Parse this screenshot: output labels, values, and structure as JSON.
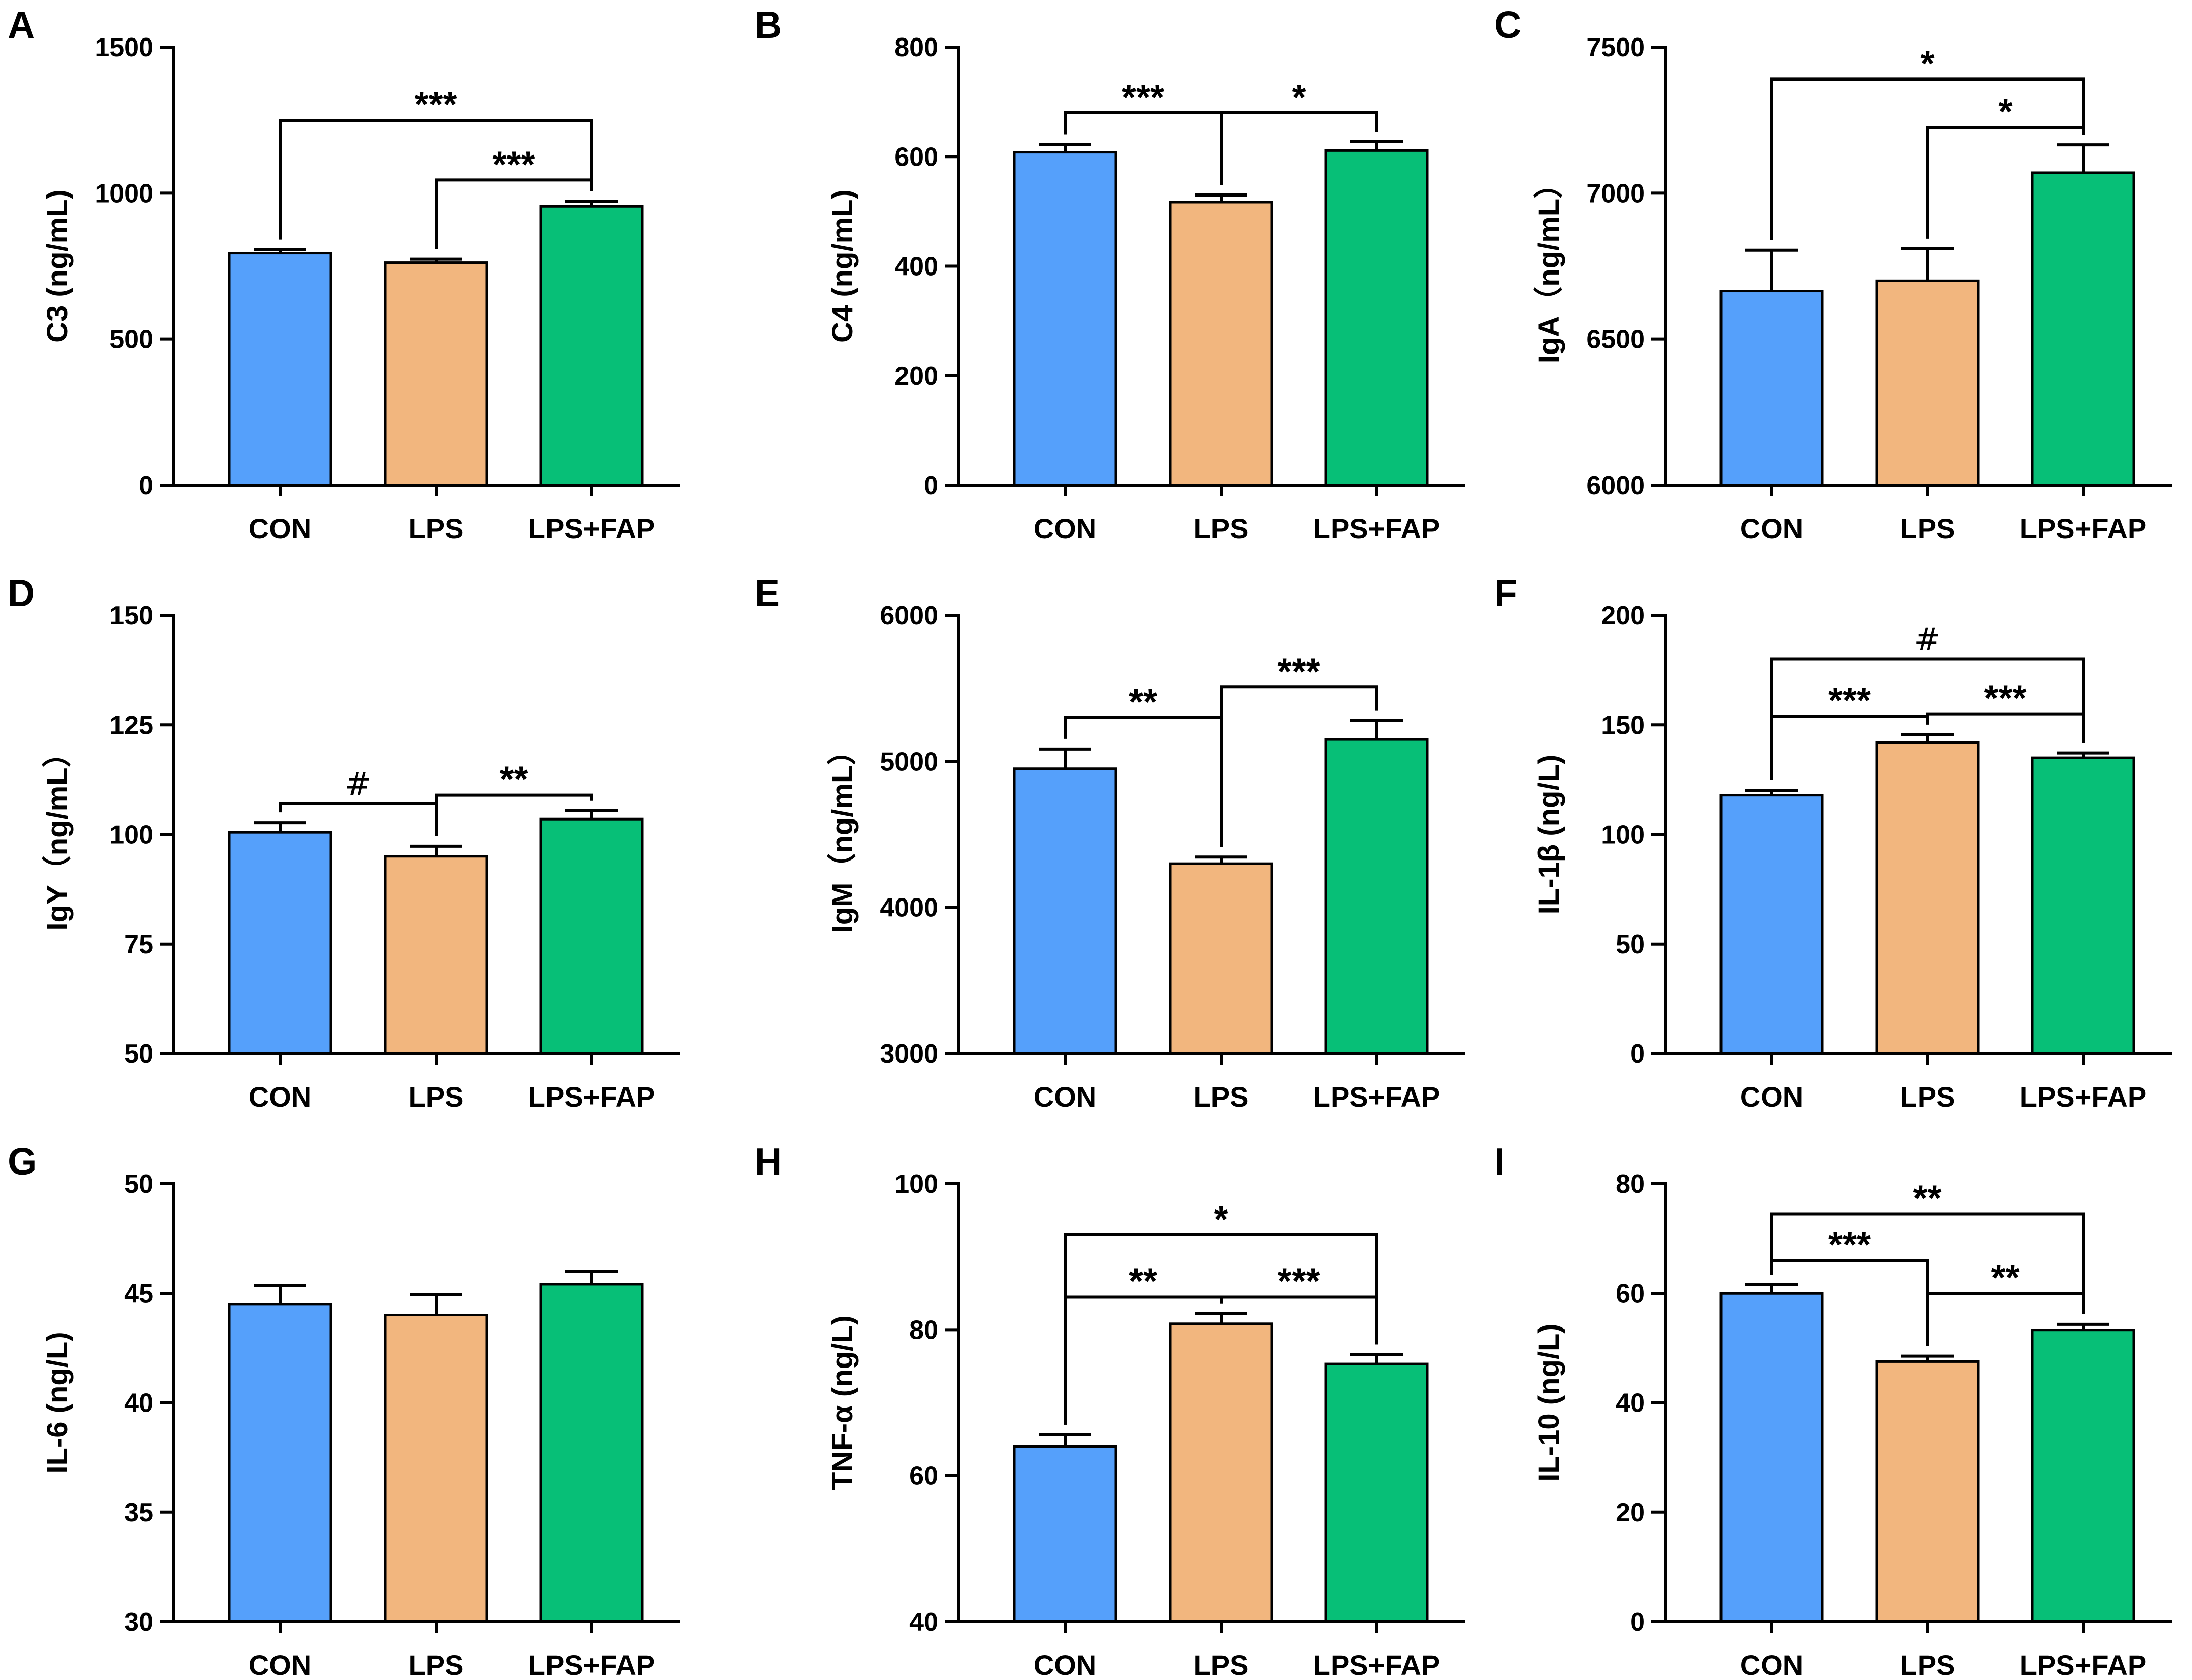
{
  "colors": {
    "CON": "#55A0FB",
    "LPS": "#F2B67E",
    "LPS+FAP": "#07BF77"
  },
  "chart_data": [
    {
      "type": "bar",
      "panel": "A",
      "ylabel": "C3 (ng/mL)",
      "categories": [
        "CON",
        "LPS",
        "LPS+FAP"
      ],
      "values": [
        795,
        762,
        955
      ],
      "errors": [
        12,
        12,
        16
      ],
      "ylim": [
        0,
        1500
      ],
      "yticks": [
        0,
        500,
        1000,
        1500
      ],
      "annotations": [
        {
          "from": 0,
          "to": 2,
          "y": 1250,
          "label": "***"
        },
        {
          "from": 1,
          "to": 2,
          "y": 1045,
          "label": "***"
        }
      ]
    },
    {
      "type": "bar",
      "panel": "B",
      "ylabel": "C4 (ng/mL)",
      "categories": [
        "CON",
        "LPS",
        "LPS+FAP"
      ],
      "values": [
        608,
        517,
        611
      ],
      "errors": [
        14,
        13,
        16
      ],
      "ylim": [
        0,
        800
      ],
      "yticks": [
        0,
        200,
        400,
        600,
        800
      ],
      "annotations": [
        {
          "from": 0,
          "to": 1,
          "y": 680,
          "label": "***"
        },
        {
          "from": 1,
          "to": 2,
          "y": 680,
          "label": "*"
        }
      ]
    },
    {
      "type": "bar",
      "panel": "C",
      "ylabel": "IgA（ng/mL）",
      "categories": [
        "CON",
        "LPS",
        "LPS+FAP"
      ],
      "values": [
        6665,
        6700,
        7070
      ],
      "errors": [
        140,
        110,
        95
      ],
      "ylim": [
        6000,
        7500
      ],
      "yticks": [
        6000,
        6500,
        7000,
        7500
      ],
      "annotations": [
        {
          "from": 0,
          "to": 2,
          "y": 7390,
          "label": "*"
        },
        {
          "from": 1,
          "to": 2,
          "y": 7225,
          "label": "*"
        }
      ]
    },
    {
      "type": "bar",
      "panel": "D",
      "ylabel": "IgY（ng/mL）",
      "categories": [
        "CON",
        "LPS",
        "LPS+FAP"
      ],
      "values": [
        100.5,
        95,
        103.5
      ],
      "errors": [
        2.2,
        2.3,
        1.9
      ],
      "ylim": [
        50,
        150
      ],
      "yticks": [
        50,
        75,
        100,
        125,
        150
      ],
      "annotations": [
        {
          "from": 0,
          "to": 1,
          "y": 107,
          "label": "#"
        },
        {
          "from": 1,
          "to": 2,
          "y": 109,
          "label": "**"
        }
      ]
    },
    {
      "type": "bar",
      "panel": "E",
      "ylabel": "IgM（ng/mL）",
      "categories": [
        "CON",
        "LPS",
        "LPS+FAP"
      ],
      "values": [
        4950,
        4300,
        5150
      ],
      "errors": [
        135,
        45,
        130
      ],
      "ylim": [
        3000,
        6000
      ],
      "yticks": [
        3000,
        4000,
        5000,
        6000
      ],
      "annotations": [
        {
          "from": 0,
          "to": 1,
          "y": 5300,
          "label": "**"
        },
        {
          "from": 1,
          "to": 2,
          "y": 5510,
          "label": "***"
        }
      ]
    },
    {
      "type": "bar",
      "panel": "F",
      "ylabel": "IL-1β (ng/L)",
      "categories": [
        "CON",
        "LPS",
        "LPS+FAP"
      ],
      "values": [
        118,
        142,
        135
      ],
      "errors": [
        2.2,
        3.5,
        2.2
      ],
      "ylim": [
        0,
        200
      ],
      "yticks": [
        0,
        50,
        100,
        150,
        200
      ],
      "annotations": [
        {
          "from": 0,
          "to": 2,
          "y": 180,
          "label": "#"
        },
        {
          "from": 0,
          "to": 1,
          "y": 154,
          "label": "***"
        },
        {
          "from": 1,
          "to": 2,
          "y": 155,
          "label": "***"
        }
      ]
    },
    {
      "type": "bar",
      "panel": "G",
      "ylabel": "IL-6 (ng/L)",
      "categories": [
        "CON",
        "LPS",
        "LPS+FAP"
      ],
      "values": [
        44.5,
        44.0,
        45.4
      ],
      "errors": [
        0.85,
        0.95,
        0.6
      ],
      "ylim": [
        30,
        50
      ],
      "yticks": [
        30,
        35,
        40,
        45,
        50
      ],
      "annotations": []
    },
    {
      "type": "bar",
      "panel": "H",
      "ylabel": "TNF-α (ng/L)",
      "categories": [
        "CON",
        "LPS",
        "LPS+FAP"
      ],
      "values": [
        64,
        80.8,
        75.3
      ],
      "errors": [
        1.6,
        1.4,
        1.3
      ],
      "ylim": [
        40,
        100
      ],
      "yticks": [
        40,
        60,
        80,
        100
      ],
      "annotations": [
        {
          "from": 0,
          "to": 2,
          "y": 93,
          "label": "*"
        },
        {
          "from": 0,
          "to": 1,
          "y": 84.5,
          "label": "**"
        },
        {
          "from": 1,
          "to": 2,
          "y": 84.5,
          "label": "***"
        }
      ]
    },
    {
      "type": "bar",
      "panel": "I",
      "ylabel": "IL-10 (ng/L)",
      "categories": [
        "CON",
        "LPS",
        "LPS+FAP"
      ],
      "values": [
        60,
        47.5,
        53.3
      ],
      "errors": [
        1.5,
        1.0,
        1.0
      ],
      "ylim": [
        0,
        80
      ],
      "yticks": [
        0,
        20,
        40,
        60,
        80
      ],
      "annotations": [
        {
          "from": 0,
          "to": 2,
          "y": 74.5,
          "label": "**"
        },
        {
          "from": 0,
          "to": 1,
          "y": 66,
          "label": "***"
        },
        {
          "from": 1,
          "to": 2,
          "y": 60,
          "label": "**"
        }
      ]
    }
  ]
}
